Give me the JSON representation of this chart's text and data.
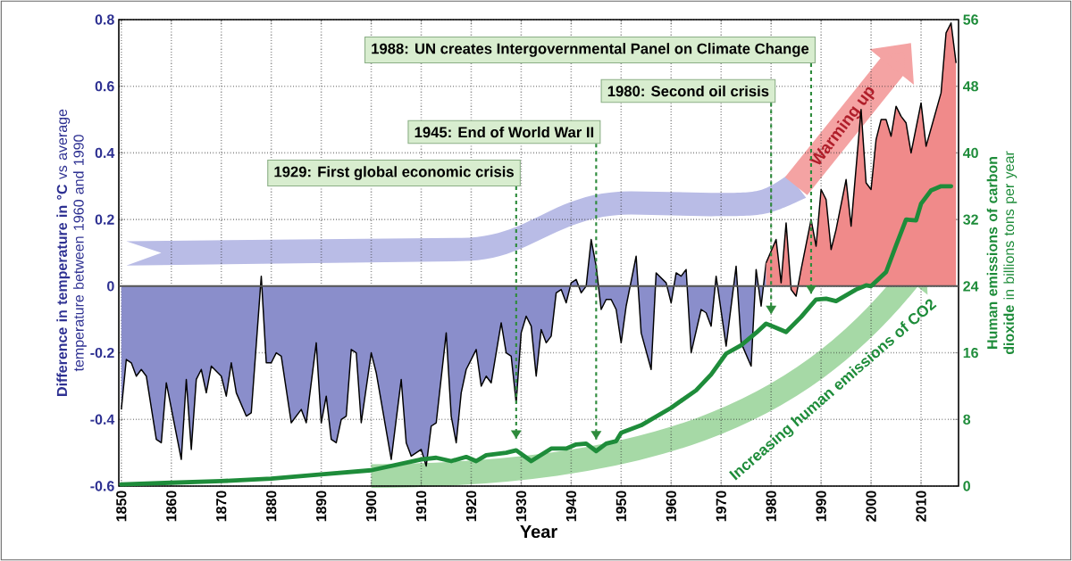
{
  "chart_data": {
    "type": "line",
    "xlabel": "Year",
    "ylabel": "**Difference in temperature in °C** vs average temperature between 1960 and 1990",
    "y2label": "**Human emissions of carbon dioxide** in billions tons per year",
    "xlim": [
      1849.5,
      2017.5
    ],
    "xticks": [
      1850,
      1860,
      1870,
      1880,
      1890,
      1900,
      1910,
      1920,
      1930,
      1940,
      1950,
      1960,
      1970,
      1980,
      1990,
      2000,
      2010
    ],
    "ylim": [
      -0.6,
      0.8
    ],
    "yticks": [
      -0.6,
      -0.4,
      -0.2,
      0,
      0.2,
      0.4,
      0.6,
      0.8
    ],
    "y2lim": [
      0,
      56
    ],
    "y2ticks": [
      0,
      8,
      16,
      24,
      32,
      40,
      48,
      56
    ],
    "grid": true,
    "series": [
      {
        "type": "area",
        "color": "#8a8ecb",
        "x": [
          1850,
          1851,
          1852,
          1853,
          1854,
          1855,
          1857,
          1858,
          1859,
          1862,
          1863,
          1864,
          1865,
          1866,
          1867,
          1868,
          1870,
          1871,
          1872,
          1873,
          1875,
          1876,
          1878,
          1879,
          1880,
          1881,
          1882,
          1884,
          1886,
          1887,
          1889,
          1890,
          1891,
          1892,
          1893,
          1894,
          1895,
          1896,
          1897,
          1898,
          1900,
          1901,
          1904,
          1906,
          1907,
          1908,
          1910,
          1911,
          1912,
          1913,
          1915,
          1916,
          1917,
          1918,
          1919,
          1921,
          1922,
          1923,
          1924,
          1926,
          1927,
          1928,
          1929,
          1930,
          1931,
          1932,
          1933,
          1934,
          1935,
          1936,
          1937,
          1938,
          1939,
          1940,
          1941,
          1942,
          1943,
          1944,
          1945,
          1946,
          1947,
          1948,
          1949,
          1950,
          1951,
          1953,
          1954,
          1956,
          1957,
          1959,
          1960,
          1961,
          1962,
          1963,
          1964,
          1966,
          1967,
          1968,
          1969,
          1971,
          1973,
          1974,
          1976,
          1977,
          1978,
          1979
        ],
        "values": [
          -0.37,
          -0.22,
          -0.23,
          -0.27,
          -0.25,
          -0.27,
          -0.46,
          -0.47,
          -0.29,
          -0.52,
          -0.28,
          -0.49,
          -0.28,
          -0.25,
          -0.32,
          -0.24,
          -0.27,
          -0.33,
          -0.23,
          -0.32,
          -0.39,
          -0.38,
          0.03,
          -0.23,
          -0.23,
          -0.2,
          -0.21,
          -0.41,
          -0.37,
          -0.41,
          -0.17,
          -0.41,
          -0.33,
          -0.46,
          -0.47,
          -0.4,
          -0.39,
          -0.19,
          -0.2,
          -0.41,
          -0.2,
          -0.26,
          -0.52,
          -0.28,
          -0.47,
          -0.51,
          -0.49,
          -0.54,
          -0.42,
          -0.41,
          -0.14,
          -0.39,
          -0.47,
          -0.32,
          -0.25,
          -0.19,
          -0.3,
          -0.27,
          -0.29,
          -0.11,
          -0.2,
          -0.21,
          -0.35,
          -0.14,
          -0.09,
          -0.12,
          -0.27,
          -0.13,
          -0.17,
          -0.15,
          -0.02,
          -0.01,
          -0.05,
          0.01,
          0.02,
          -0.02,
          0.0,
          0.14,
          0.06,
          -0.07,
          -0.04,
          -0.04,
          -0.07,
          -0.17,
          -0.06,
          0.09,
          -0.14,
          -0.25,
          0.04,
          0.01,
          -0.05,
          0.04,
          0.03,
          0.05,
          -0.2,
          -0.07,
          -0.08,
          -0.12,
          0.03,
          -0.18,
          0.06,
          -0.17,
          -0.24,
          0.05,
          -0.06,
          0.07
        ]
      },
      {
        "type": "area",
        "color": "#f08a8a",
        "x": [
          1979,
          1981,
          1982,
          1983,
          1984,
          1985,
          1986,
          1988,
          1989,
          1990,
          1991,
          1992,
          1993,
          1995,
          1996,
          1998,
          1999,
          2000,
          2001,
          2002,
          2003,
          2004,
          2005,
          2006,
          2007,
          2008,
          2010,
          2011,
          2014,
          2015,
          2016,
          2017
        ],
        "values": [
          0.07,
          0.14,
          0.01,
          0.19,
          -0.01,
          -0.03,
          0.05,
          0.2,
          0.12,
          0.29,
          0.26,
          0.11,
          0.17,
          0.32,
          0.18,
          0.53,
          0.31,
          0.29,
          0.44,
          0.5,
          0.5,
          0.45,
          0.54,
          0.51,
          0.49,
          0.4,
          0.55,
          0.42,
          0.58,
          0.76,
          0.79,
          0.67
        ]
      },
      {
        "axis": "y2",
        "color": "#1e8c3a",
        "x": [
          1850,
          1860,
          1870,
          1880,
          1890,
          1900,
          1910,
          1913,
          1916,
          1919,
          1921,
          1923,
          1927,
          1929,
          1932,
          1936,
          1939,
          1941,
          1943,
          1945,
          1947,
          1949,
          1950,
          1954,
          1960,
          1965,
          1968,
          1971,
          1974,
          1977,
          1979,
          1981,
          1983,
          1986,
          1989,
          1991,
          1993,
          1997,
          1999,
          2000,
          2003,
          2005,
          2007,
          2009,
          2010,
          2012,
          2014,
          2016
        ],
        "values": [
          0.2,
          0.4,
          0.6,
          0.9,
          1.4,
          1.9,
          3.2,
          3.4,
          3.0,
          3.5,
          3.0,
          3.7,
          4.0,
          4.3,
          3.0,
          4.5,
          4.5,
          5.0,
          5.1,
          4.2,
          5.1,
          5.4,
          6.4,
          7.3,
          9.4,
          11.5,
          13.4,
          15.9,
          16.9,
          18.4,
          19.5,
          19.0,
          18.5,
          20.3,
          22.4,
          22.5,
          22.2,
          23.6,
          24.1,
          24.0,
          25.7,
          28.9,
          32.0,
          31.9,
          33.9,
          35.5,
          36.0,
          36.0
        ]
      }
    ],
    "ref_lines": [
      {
        "axis": "y",
        "value": 0,
        "color": "#555555",
        "line_style": "solid"
      },
      {
        "axis": "x",
        "value": 1929,
        "label": "1929: First global economic crisis",
        "color": "#2e8b3c",
        "line_style": "dashed"
      },
      {
        "axis": "x",
        "value": 1945,
        "label": "1945: End of World War II",
        "color": "#2e8b3c",
        "line_style": "dashed"
      },
      {
        "axis": "x",
        "value": 1980,
        "label": "1980: Second oil crisis",
        "color": "#2e8b3c",
        "line_style": "dashed"
      },
      {
        "axis": "x",
        "value": 1988,
        "label": "1988: UN creates Intergovernmental Panel on Climate Change",
        "color": "#2e8b3c",
        "line_style": "dashed"
      }
    ],
    "annotations": [
      "Warming up",
      "Increasing human emissions of CO2"
    ]
  }
}
